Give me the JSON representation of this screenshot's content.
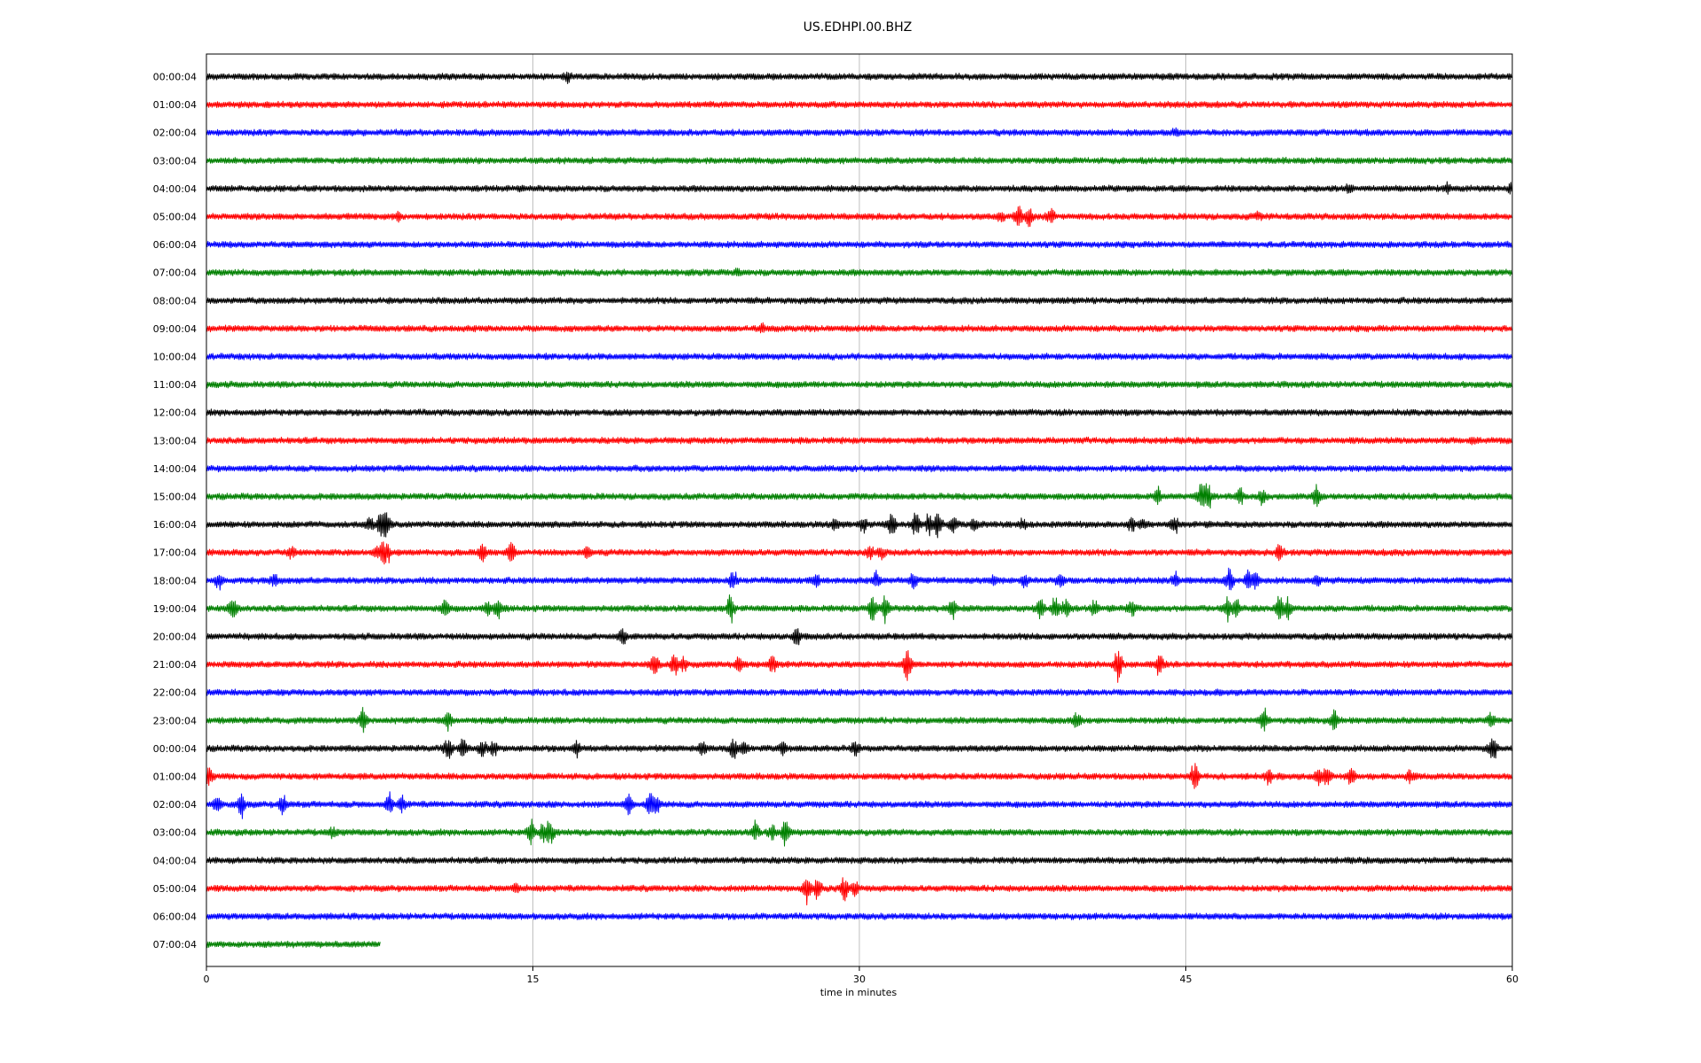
{
  "chart_data": {
    "type": "line",
    "title": "US.EDHPI.00.BHZ",
    "xlabel": "time in minutes",
    "ylabel": "",
    "xlim": [
      0,
      60
    ],
    "xticks": [
      "0",
      "15",
      "30",
      "45",
      "60"
    ],
    "grid": "vertical",
    "series_colors": [
      "#000000",
      "#ff0000",
      "#0000ff",
      "#008000"
    ],
    "rows": [
      {
        "label": "00:00:04",
        "end": 60,
        "events": [
          [
            16.6,
            5
          ]
        ]
      },
      {
        "label": "01:00:04",
        "end": 60,
        "events": []
      },
      {
        "label": "02:00:04",
        "end": 60,
        "events": [
          [
            44.5,
            4
          ]
        ]
      },
      {
        "label": "03:00:04",
        "end": 60,
        "events": []
      },
      {
        "label": "04:00:04",
        "end": 60,
        "events": [
          [
            52.5,
            4
          ],
          [
            57,
            5
          ],
          [
            59.9,
            4
          ]
        ]
      },
      {
        "label": "05:00:04",
        "end": 60,
        "events": [
          [
            8.8,
            5
          ],
          [
            36.5,
            5
          ],
          [
            37.3,
            17
          ],
          [
            37.8,
            12
          ],
          [
            38.8,
            9
          ],
          [
            48.3,
            4
          ]
        ]
      },
      {
        "label": "06:00:04",
        "end": 60,
        "events": []
      },
      {
        "label": "07:00:04",
        "end": 60,
        "events": [
          [
            24.4,
            3
          ]
        ]
      },
      {
        "label": "08:00:04",
        "end": 60,
        "events": []
      },
      {
        "label": "09:00:04",
        "end": 60,
        "events": [
          [
            25.5,
            4
          ]
        ]
      },
      {
        "label": "10:00:04",
        "end": 60,
        "events": []
      },
      {
        "label": "11:00:04",
        "end": 60,
        "events": []
      },
      {
        "label": "12:00:04",
        "end": 60,
        "events": []
      },
      {
        "label": "13:00:04",
        "end": 60,
        "events": [
          [
            58.2,
            4
          ]
        ]
      },
      {
        "label": "14:00:04",
        "end": 60,
        "events": []
      },
      {
        "label": "15:00:04",
        "end": 60,
        "events": [
          [
            43.7,
            12
          ],
          [
            45.7,
            16
          ],
          [
            46,
            22
          ],
          [
            47.5,
            9
          ],
          [
            48.5,
            8
          ],
          [
            51,
            12
          ]
        ]
      },
      {
        "label": "16:00:04",
        "end": 60,
        "events": [
          [
            7.5,
            10
          ],
          [
            8,
            12
          ],
          [
            8.1,
            14
          ],
          [
            8.3,
            9
          ],
          [
            28.9,
            6
          ],
          [
            30.2,
            10
          ],
          [
            31.5,
            15
          ],
          [
            32.6,
            13
          ],
          [
            33.2,
            13
          ],
          [
            33.6,
            16
          ],
          [
            34.3,
            11
          ],
          [
            35.3,
            10
          ],
          [
            37.5,
            6
          ],
          [
            42.5,
            8
          ],
          [
            43,
            7
          ],
          [
            44.5,
            9
          ]
        ]
      },
      {
        "label": "17:00:04",
        "end": 60,
        "events": [
          [
            3.9,
            6
          ],
          [
            7.8,
            6
          ],
          [
            8.1,
            10
          ],
          [
            8.3,
            12
          ],
          [
            12.7,
            12
          ],
          [
            14,
            12
          ],
          [
            17.5,
            8
          ],
          [
            30.5,
            9
          ],
          [
            31,
            6
          ],
          [
            49.3,
            11
          ]
        ]
      },
      {
        "label": "18:00:04",
        "end": 60,
        "events": [
          [
            0.6,
            10
          ],
          [
            3.1,
            8
          ],
          [
            24.2,
            13
          ],
          [
            28,
            8
          ],
          [
            30.8,
            10
          ],
          [
            32.5,
            9
          ],
          [
            36.2,
            6
          ],
          [
            37.6,
            9
          ],
          [
            39.2,
            8
          ],
          [
            44.5,
            10
          ],
          [
            47,
            18
          ],
          [
            47.9,
            17
          ],
          [
            48.2,
            10
          ],
          [
            51,
            6
          ]
        ]
      },
      {
        "label": "19:00:04",
        "end": 60,
        "events": [
          [
            1.2,
            16
          ],
          [
            11,
            10
          ],
          [
            12.9,
            10
          ],
          [
            13.4,
            14
          ],
          [
            24.1,
            18
          ],
          [
            30.6,
            18
          ],
          [
            31.2,
            20
          ],
          [
            34.3,
            12
          ],
          [
            38.3,
            16
          ],
          [
            39,
            15
          ],
          [
            39.5,
            14
          ],
          [
            40.8,
            9
          ],
          [
            42.5,
            10
          ],
          [
            46.9,
            14
          ],
          [
            47.3,
            15
          ],
          [
            49.3,
            17
          ],
          [
            49.7,
            12
          ]
        ]
      },
      {
        "label": "20:00:04",
        "end": 60,
        "events": [
          [
            19.1,
            12
          ],
          [
            27.1,
            11
          ]
        ]
      },
      {
        "label": "21:00:04",
        "end": 60,
        "events": [
          [
            20.6,
            14
          ],
          [
            21.5,
            14
          ],
          [
            21.9,
            10
          ],
          [
            24.5,
            9
          ],
          [
            26,
            12
          ],
          [
            32.2,
            22
          ],
          [
            41.9,
            20
          ],
          [
            43.8,
            14
          ]
        ]
      },
      {
        "label": "22:00:04",
        "end": 60,
        "events": []
      },
      {
        "label": "23:00:04",
        "end": 60,
        "events": [
          [
            7.2,
            15
          ],
          [
            11.1,
            12
          ],
          [
            40,
            10
          ],
          [
            48.6,
            14
          ],
          [
            51.8,
            15
          ],
          [
            59,
            8
          ]
        ]
      },
      {
        "label": "00:00:04",
        "end": 60,
        "events": [
          [
            11.1,
            14
          ],
          [
            11.8,
            16
          ],
          [
            12.7,
            12
          ],
          [
            13.2,
            10
          ],
          [
            17,
            9
          ],
          [
            22.8,
            10
          ],
          [
            24.2,
            14
          ],
          [
            24.7,
            11
          ],
          [
            26.5,
            8
          ],
          [
            29.8,
            8
          ],
          [
            59.1,
            20
          ]
        ]
      },
      {
        "label": "01:00:04",
        "end": 60,
        "events": [
          [
            0.1,
            16
          ],
          [
            45.4,
            18
          ],
          [
            48.8,
            9
          ],
          [
            51.1,
            11
          ],
          [
            51.5,
            13
          ],
          [
            52.6,
            12
          ],
          [
            55.3,
            8
          ]
        ]
      },
      {
        "label": "02:00:04",
        "end": 60,
        "events": [
          [
            0.5,
            13
          ],
          [
            1.6,
            17
          ],
          [
            3.5,
            15
          ],
          [
            8.4,
            14
          ],
          [
            9,
            9
          ],
          [
            19.4,
            16
          ],
          [
            20.4,
            15
          ],
          [
            20.7,
            10
          ]
        ]
      },
      {
        "label": "03:00:04",
        "end": 60,
        "events": [
          [
            5.8,
            7
          ],
          [
            14.9,
            16
          ],
          [
            15.5,
            13
          ],
          [
            15.8,
            14
          ],
          [
            25.2,
            14
          ],
          [
            26,
            10
          ],
          [
            26.6,
            15
          ]
        ]
      },
      {
        "label": "04:00:04",
        "end": 60,
        "events": []
      },
      {
        "label": "05:00:04",
        "end": 60,
        "events": [
          [
            14.2,
            7
          ],
          [
            27.6,
            18
          ],
          [
            28.1,
            14
          ],
          [
            29.3,
            15
          ],
          [
            29.8,
            11
          ]
        ]
      },
      {
        "label": "06:00:04",
        "end": 60,
        "events": []
      },
      {
        "label": "07:00:04",
        "end": 8,
        "events": []
      }
    ]
  }
}
